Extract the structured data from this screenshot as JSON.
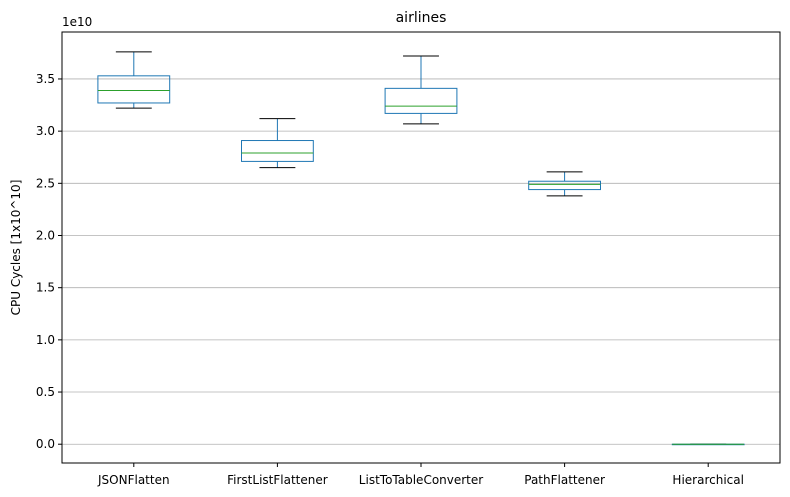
{
  "chart_data": {
    "type": "box",
    "title": "airlines",
    "ylabel": "CPU Cycles [1x10^10]",
    "offset_label": "1e10",
    "ylim": [
      -0.18,
      3.95
    ],
    "yticks": [
      0.0,
      0.5,
      1.0,
      1.5,
      2.0,
      2.5,
      3.0,
      3.5
    ],
    "ytick_labels": [
      "0.0",
      "0.5",
      "1.0",
      "1.5",
      "2.0",
      "2.5",
      "3.0",
      "3.5"
    ],
    "grid": "horizontal",
    "categories": [
      "JSONFlatten",
      "FirstListFlattener",
      "ListToTableConverter",
      "PathFlattener",
      "Hierarchical"
    ],
    "boxes": [
      {
        "name": "JSONFlatten",
        "whisker_low": 3.22,
        "q1": 3.27,
        "median": 3.39,
        "q3": 3.53,
        "whisker_high": 3.76
      },
      {
        "name": "FirstListFlattener",
        "whisker_low": 2.65,
        "q1": 2.71,
        "median": 2.79,
        "q3": 2.91,
        "whisker_high": 3.12
      },
      {
        "name": "ListToTableConverter",
        "whisker_low": 3.07,
        "q1": 3.17,
        "median": 3.24,
        "q3": 3.41,
        "whisker_high": 3.72
      },
      {
        "name": "PathFlattener",
        "whisker_low": 2.38,
        "q1": 2.44,
        "median": 2.49,
        "q3": 2.52,
        "whisker_high": 2.61
      },
      {
        "name": "Hierarchical",
        "whisker_low": 0.0,
        "q1": 0.0,
        "median": 0.0,
        "q3": 0.0,
        "whisker_high": 0.0
      }
    ],
    "colors": {
      "box": "#1f77b4",
      "median": "#2ca02c",
      "cap": "#000000",
      "grid": "#b0b0b0",
      "axis": "#000000"
    }
  }
}
